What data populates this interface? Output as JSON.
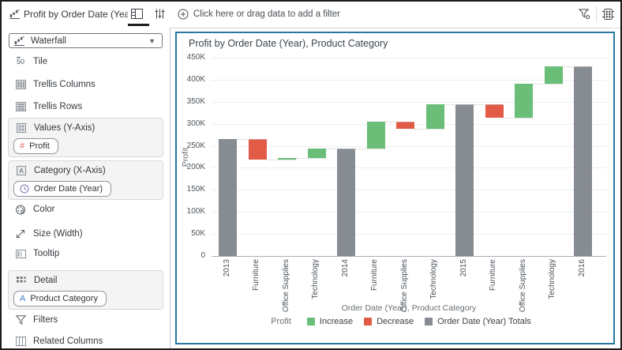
{
  "sidebar": {
    "header": {
      "title": "Profit by Order Date (Year), Pr..."
    },
    "viz_type_selector": {
      "value": "Waterfall"
    },
    "rows": {
      "tile": "Tile",
      "trellis_columns": "Trellis Columns",
      "trellis_rows": "Trellis Rows",
      "color": "Color",
      "size": "Size (Width)",
      "tooltip": "Tooltip",
      "filters": "Filters",
      "related_columns": "Related Columns"
    },
    "sections": {
      "values": {
        "label": "Values (Y-Axis)",
        "chips": [
          "Profit"
        ]
      },
      "category": {
        "label": "Category (X-Axis)",
        "chips": [
          "Order Date (Year)"
        ]
      },
      "detail": {
        "label": "Detail",
        "chips": [
          "Product Category"
        ]
      }
    }
  },
  "topbar": {
    "filter_prompt": "Click here or drag data to add a filter"
  },
  "chart_data": {
    "type": "waterfall",
    "title": "Profit by Order Date (Year), Product Category",
    "xlabel": "Order Date (Year), Product Category",
    "ylabel": "Profit",
    "ylim": [
      0,
      450000
    ],
    "ytick_step": 50000,
    "yticks": [
      "0",
      "50K",
      "100K",
      "150K",
      "200K",
      "250K",
      "300K",
      "350K",
      "400K",
      "450K"
    ],
    "grid": true,
    "legend_position": "bottom",
    "categories": [
      "2013",
      "Furniture",
      "Office Supplies",
      "Technology",
      "2014",
      "Furniture",
      "Office Supplies",
      "Technology",
      "2015",
      "Furniture",
      "Office Supplies",
      "Technology",
      "2016"
    ],
    "steps": [
      {
        "label": "2013",
        "kind": "total",
        "start": 0,
        "end": 266000,
        "value": 266000
      },
      {
        "label": "Furniture",
        "kind": "decrease",
        "start": 266000,
        "end": 218000,
        "value": -48000
      },
      {
        "label": "Office Supplies",
        "kind": "increase",
        "start": 218000,
        "end": 223000,
        "value": 5000
      },
      {
        "label": "Technology",
        "kind": "increase",
        "start": 223000,
        "end": 244000,
        "value": 21000
      },
      {
        "label": "2014",
        "kind": "total",
        "start": 0,
        "end": 244000,
        "value": 244000
      },
      {
        "label": "Furniture",
        "kind": "increase",
        "start": 244000,
        "end": 305000,
        "value": 61000
      },
      {
        "label": "Office Supplies",
        "kind": "decrease",
        "start": 305000,
        "end": 288000,
        "value": -17000
      },
      {
        "label": "Technology",
        "kind": "increase",
        "start": 288000,
        "end": 345000,
        "value": 57000
      },
      {
        "label": "2015",
        "kind": "total",
        "start": 0,
        "end": 345000,
        "value": 345000
      },
      {
        "label": "Furniture",
        "kind": "decrease",
        "start": 345000,
        "end": 313000,
        "value": -32000
      },
      {
        "label": "Office Supplies",
        "kind": "increase",
        "start": 313000,
        "end": 391000,
        "value": 78000
      },
      {
        "label": "Technology",
        "kind": "increase",
        "start": 391000,
        "end": 431000,
        "value": 40000
      },
      {
        "label": "2016",
        "kind": "total",
        "start": 0,
        "end": 431000,
        "value": 431000
      }
    ],
    "legend": {
      "title": "Profit",
      "items": [
        {
          "label": "Increase",
          "kind": "increase"
        },
        {
          "label": "Decrease",
          "kind": "decrease"
        },
        {
          "label": "Order Date (Year) Totals",
          "kind": "total"
        }
      ]
    }
  },
  "colors": {
    "increase": "#6ABE78",
    "decrease": "#E25B47",
    "total": "#878C92",
    "selection_border": "#26789E",
    "hash_chip": "#E0645A",
    "clock_chip": "#7B74AE",
    "letter_chip": "#3E7FC1"
  }
}
